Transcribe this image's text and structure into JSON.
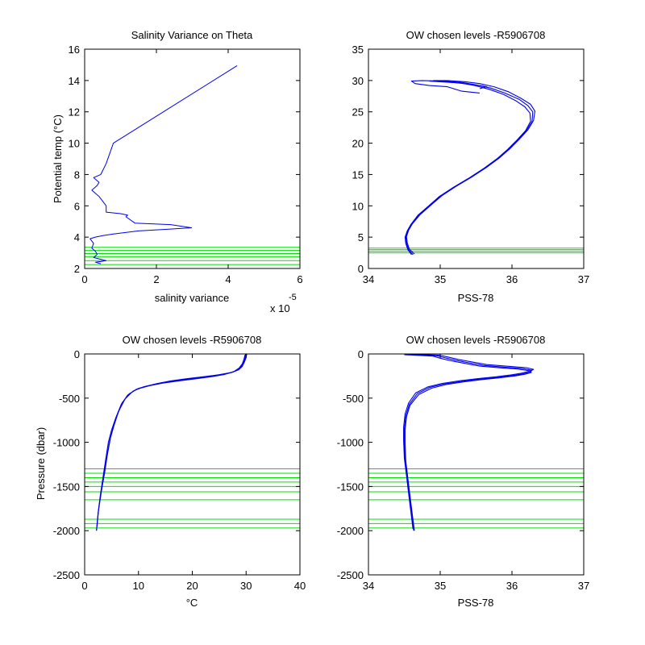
{
  "colors": {
    "profile": "#0000ee",
    "levels": "#00e000",
    "axis": "#000000",
    "background": "#ffffff"
  },
  "chart_data": [
    {
      "id": "salinity-variance",
      "type": "line",
      "title": "Salinity Variance on Theta",
      "xlabel": "salinity variance",
      "ylabel": "Potential temp (°C)",
      "x_multiplier_label": "x 10",
      "x_multiplier_exponent": "-5",
      "xlim": [
        0,
        6
      ],
      "ylim": [
        2,
        16
      ],
      "xticks": [
        0,
        2,
        4,
        6
      ],
      "yticks": [
        2,
        4,
        6,
        8,
        10,
        12,
        14,
        16
      ],
      "grid": false,
      "series": [
        {
          "x": [
            0.45,
            0.3,
            0.6,
            0.25,
            0.35,
            0.3,
            0.2,
            0.25,
            0.15,
            0.3,
            0.5,
            0.8,
            1.5,
            2.3,
            2.98,
            2.4,
            1.4,
            1.15,
            1.2,
            1.0,
            0.6,
            0.6,
            0.4,
            0.2,
            0.35,
            0.4,
            0.25,
            0.45,
            0.6,
            0.8,
            4.25
          ],
          "y": [
            2.3,
            2.4,
            2.5,
            2.7,
            2.9,
            3.1,
            3.3,
            3.6,
            3.9,
            4.0,
            4.1,
            4.2,
            4.4,
            4.5,
            4.6,
            4.8,
            4.9,
            5.3,
            5.4,
            5.5,
            5.6,
            6.0,
            6.6,
            7.0,
            7.3,
            7.5,
            7.8,
            8.0,
            8.7,
            10.0,
            14.95
          ]
        }
      ],
      "hlines": [
        2.25,
        2.5,
        2.75,
        2.95,
        3.15,
        3.35
      ]
    },
    {
      "id": "theta-salinity",
      "type": "line",
      "title": "OW chosen levels -R5906708",
      "xlabel": "PSS-78",
      "ylabel": "",
      "xlim": [
        34,
        37
      ],
      "ylim": [
        0,
        35
      ],
      "xticks": [
        34,
        35,
        36,
        37
      ],
      "yticks": [
        0,
        5,
        10,
        15,
        20,
        25,
        30,
        35
      ],
      "grid": false,
      "series": [
        {
          "x": [
            34.62,
            34.56,
            34.53,
            34.52,
            34.55,
            34.6,
            34.7,
            34.85,
            35.0,
            35.2,
            35.42,
            35.62,
            35.8,
            35.95,
            36.08,
            36.2,
            36.28,
            36.29,
            36.22,
            36.1,
            35.9,
            35.7,
            35.5,
            35.3,
            35.05,
            34.95
          ],
          "y": [
            2.2,
            3.0,
            4.0,
            5.0,
            6.0,
            7.0,
            8.5,
            10.0,
            11.5,
            13.0,
            14.5,
            16.0,
            17.5,
            19.0,
            20.5,
            22.0,
            23.5,
            25.0,
            26.0,
            27.0,
            28.0,
            28.8,
            29.3,
            29.7,
            29.9,
            30.0
          ]
        },
        {
          "x": [
            34.64,
            34.57,
            34.54,
            34.53,
            34.56,
            34.61,
            34.72,
            34.87,
            35.02,
            35.22,
            35.44,
            35.64,
            35.82,
            35.97,
            36.1,
            36.22,
            36.3,
            36.32,
            36.26,
            36.12,
            35.95,
            35.75,
            35.55,
            35.35,
            35.1,
            34.9
          ],
          "y": [
            2.3,
            3.1,
            4.1,
            5.1,
            6.1,
            7.1,
            8.6,
            10.1,
            11.6,
            13.1,
            14.6,
            16.1,
            17.6,
            19.1,
            20.6,
            22.1,
            23.6,
            25.1,
            26.2,
            27.2,
            28.2,
            29.0,
            29.5,
            29.8,
            30.0,
            30.0
          ]
        },
        {
          "x": [
            34.6,
            34.55,
            34.52,
            34.51,
            34.54,
            34.59,
            34.69,
            34.84,
            34.99,
            35.19,
            35.41,
            35.61,
            35.79,
            35.94,
            36.07,
            36.19,
            36.26,
            36.25,
            36.18,
            36.05,
            35.88,
            35.68,
            35.48,
            35.28,
            35.0,
            34.85
          ],
          "y": [
            2.2,
            3.0,
            4.0,
            5.0,
            6.0,
            7.0,
            8.5,
            10.0,
            11.5,
            13.0,
            14.5,
            16.0,
            17.5,
            19.0,
            20.5,
            22.0,
            23.5,
            24.8,
            25.8,
            26.8,
            27.8,
            28.6,
            29.2,
            29.6,
            29.8,
            29.9
          ]
        },
        {
          "x": [
            35.55,
            35.3,
            35.1,
            34.85,
            34.65,
            34.6,
            34.75,
            35.0,
            35.25,
            35.5,
            35.65,
            35.55
          ],
          "y": [
            28.0,
            28.3,
            29.0,
            29.2,
            29.5,
            29.9,
            30.0,
            29.9,
            29.6,
            29.3,
            29.0,
            28.7
          ]
        }
      ],
      "hlines": [
        2.5,
        2.75,
        3.0,
        3.25
      ]
    },
    {
      "id": "pressure-temperature",
      "type": "line",
      "title": "OW chosen levels -R5906708",
      "xlabel": "°C",
      "ylabel": "Pressure (dbar)",
      "xlim": [
        0,
        40
      ],
      "ylim": [
        -2500,
        0
      ],
      "xticks": [
        0,
        10,
        20,
        30,
        40
      ],
      "yticks": [
        -2500,
        -2000,
        -1500,
        -1000,
        -500,
        0
      ],
      "grid": false,
      "series": [
        {
          "x": [
            2.2,
            2.5,
            3.0,
            3.5,
            4.0,
            4.6,
            5.2,
            6.0,
            7.0,
            8.3,
            10.0,
            12.5,
            15.0,
            18.0,
            21.0,
            24.0,
            26.5,
            28.0,
            29.0,
            29.5,
            29.8,
            29.9
          ],
          "y": [
            -2000,
            -1800,
            -1600,
            -1400,
            -1200,
            -1000,
            -850,
            -700,
            -550,
            -450,
            -390,
            -350,
            -320,
            -295,
            -270,
            -245,
            -220,
            -195,
            -150,
            -100,
            -50,
            -5
          ]
        },
        {
          "x": [
            2.3,
            2.6,
            3.1,
            3.7,
            4.2,
            4.8,
            5.5,
            6.3,
            7.5,
            9.0,
            11.0,
            13.5,
            16.0,
            19.0,
            22.0,
            25.0,
            27.2,
            28.6,
            29.3,
            29.7,
            30.0,
            30.1
          ],
          "y": [
            -1950,
            -1750,
            -1550,
            -1350,
            -1150,
            -950,
            -800,
            -650,
            -510,
            -420,
            -370,
            -335,
            -305,
            -280,
            -258,
            -235,
            -210,
            -180,
            -140,
            -90,
            -40,
            -5
          ]
        },
        {
          "x": [
            2.2,
            2.5,
            2.9,
            3.4,
            3.9,
            4.4,
            5.0,
            5.8,
            6.8,
            8.0,
            9.6,
            12.0,
            14.5,
            17.5,
            20.5,
            23.5,
            26.0,
            27.6,
            28.7,
            29.3,
            29.6,
            29.8
          ],
          "y": [
            -2000,
            -1800,
            -1600,
            -1400,
            -1200,
            -1000,
            -860,
            -720,
            -570,
            -465,
            -400,
            -360,
            -330,
            -305,
            -282,
            -258,
            -232,
            -205,
            -160,
            -110,
            -60,
            -10
          ]
        }
      ],
      "hlines": [
        -1300,
        -1350,
        -1400,
        -1450,
        -1500,
        -1560,
        -1650,
        -1870,
        -1920,
        -1970
      ]
    },
    {
      "id": "pressure-salinity",
      "type": "line",
      "title": "OW chosen levels -R5906708",
      "xlabel": "PSS-78",
      "ylabel": "",
      "xlim": [
        34,
        37
      ],
      "ylim": [
        -2500,
        0
      ],
      "xticks": [
        34,
        35,
        36,
        37
      ],
      "yticks": [
        -2500,
        -2000,
        -1500,
        -1000,
        -500,
        0
      ],
      "grid": false,
      "series": [
        {
          "x": [
            34.63,
            34.6,
            34.57,
            34.54,
            34.51,
            34.5,
            34.5,
            34.52,
            34.57,
            34.68,
            34.85,
            35.05,
            35.3,
            35.55,
            35.8,
            36.0,
            36.15,
            36.25,
            36.28,
            36.15,
            35.9,
            35.6,
            35.4,
            35.2,
            35.05,
            34.95,
            34.55
          ],
          "y": [
            -2000,
            -1800,
            -1600,
            -1400,
            -1200,
            -1000,
            -850,
            -700,
            -570,
            -450,
            -380,
            -340,
            -310,
            -285,
            -265,
            -245,
            -225,
            -205,
            -185,
            -165,
            -150,
            -130,
            -100,
            -70,
            -40,
            -20,
            -5
          ]
        },
        {
          "x": [
            34.62,
            34.59,
            34.56,
            34.53,
            34.5,
            34.49,
            34.49,
            34.51,
            34.56,
            34.66,
            34.83,
            35.03,
            35.28,
            35.53,
            35.78,
            35.98,
            36.13,
            36.23,
            36.3,
            36.2,
            35.95,
            35.65,
            35.45,
            35.25,
            35.1,
            35.0,
            34.6
          ],
          "y": [
            -1980,
            -1780,
            -1580,
            -1380,
            -1180,
            -980,
            -830,
            -680,
            -555,
            -440,
            -372,
            -333,
            -303,
            -278,
            -258,
            -238,
            -218,
            -198,
            -175,
            -155,
            -140,
            -120,
            -92,
            -62,
            -34,
            -15,
            -3
          ]
        },
        {
          "x": [
            34.64,
            34.61,
            34.58,
            34.55,
            34.52,
            34.51,
            34.51,
            34.53,
            34.58,
            34.7,
            34.88,
            35.08,
            35.33,
            35.58,
            35.83,
            36.03,
            36.18,
            36.27,
            36.25,
            36.1,
            35.85,
            35.55,
            35.35,
            35.15,
            35.0,
            34.9,
            34.5
          ],
          "y": [
            -2000,
            -1810,
            -1610,
            -1410,
            -1210,
            -1010,
            -860,
            -710,
            -580,
            -460,
            -388,
            -347,
            -316,
            -290,
            -270,
            -250,
            -230,
            -210,
            -192,
            -172,
            -158,
            -138,
            -108,
            -78,
            -48,
            -25,
            -8
          ]
        }
      ],
      "hlines": [
        -1300,
        -1350,
        -1400,
        -1450,
        -1500,
        -1560,
        -1650,
        -1870,
        -1920,
        -1970
      ]
    }
  ]
}
